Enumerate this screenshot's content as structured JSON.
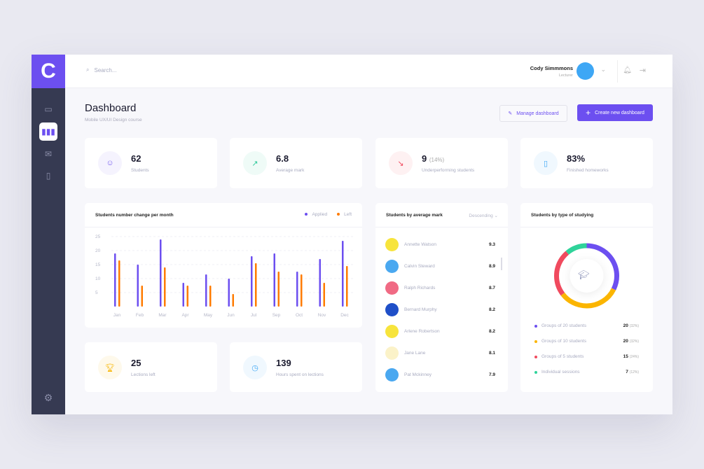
{
  "app": {
    "logo": "C"
  },
  "sidebar": {
    "items": [
      {
        "icon": "folder-icon"
      },
      {
        "icon": "bar-chart-icon",
        "active": true
      },
      {
        "icon": "mail-icon"
      },
      {
        "icon": "document-icon"
      }
    ],
    "settings_icon": "gear-icon"
  },
  "header": {
    "search_placeholder": "Search...",
    "user_name": "Cody Simmmons",
    "user_role": "Lecturer"
  },
  "page": {
    "title": "Dashboard",
    "subtitle": "Mobile UX/UI Design course",
    "manage_label": "Manage dashboard",
    "create_label": "Create new dashboard"
  },
  "stats": [
    {
      "value": "62",
      "extra": "",
      "label": "Students",
      "icon": "user-icon",
      "color": "#7c63f0"
    },
    {
      "value": "6.8",
      "extra": "",
      "label": "Average mark",
      "icon": "trend-up-icon",
      "color": "#2ec99a"
    },
    {
      "value": "9",
      "extra": "(14%)",
      "label": "Underperforming students",
      "icon": "trend-down-icon",
      "color": "#f04a5e"
    },
    {
      "value": "83%",
      "extra": "",
      "label": "Finished homeworks",
      "icon": "book-icon",
      "color": "#3ea7f5"
    }
  ],
  "stats2": [
    {
      "value": "25",
      "label": "Lections left",
      "icon": "trophy-icon",
      "color": "#f7b500"
    },
    {
      "value": "139",
      "label": "Hours spent on lections",
      "icon": "clock-icon",
      "color": "#3ea7f5"
    }
  ],
  "chart_data": {
    "type": "bar",
    "title": "Students number change per month",
    "categories": [
      "Jan",
      "Feb",
      "Mar",
      "Apr",
      "May",
      "Jun",
      "Jul",
      "Sep",
      "Oct",
      "Nov",
      "Dec"
    ],
    "series": [
      {
        "name": "Applied",
        "color": "#6c4ff0",
        "values": [
          19,
          15,
          24,
          8.5,
          11.5,
          10,
          18,
          19,
          12.5,
          17,
          23.5
        ]
      },
      {
        "name": "Left",
        "color": "#ff7b00",
        "values": [
          16.5,
          7.5,
          14,
          7.5,
          7.5,
          4.5,
          15.5,
          12.5,
          11.5,
          8.5,
          14.5
        ]
      }
    ],
    "yticks": [
      "5",
      "10",
      "15",
      "20",
      "25"
    ],
    "ylim": [
      0,
      25
    ],
    "grid": true,
    "legend": "top-right"
  },
  "marks": {
    "title": "Students by average mark",
    "sort": "Descending",
    "students": [
      {
        "name": "Annette Watson",
        "mark": "9.3",
        "bg": "#f7e43c"
      },
      {
        "name": "Calvin Steward",
        "mark": "8.9",
        "bg": "#4aa8f0"
      },
      {
        "name": "Ralph Richards",
        "mark": "8.7",
        "bg": "#f06a84"
      },
      {
        "name": "Bernard Murphy",
        "mark": "8.2",
        "bg": "#1f4fc8"
      },
      {
        "name": "Arlene Robertson",
        "mark": "8.2",
        "bg": "#f7e43c"
      },
      {
        "name": "Jane Lane",
        "mark": "8.1",
        "bg": "#fbf2c8"
      },
      {
        "name": "Pat Mckinney",
        "mark": "7.9",
        "bg": "#4aa8f0"
      }
    ]
  },
  "studying": {
    "title": "Students by type of studying",
    "center_icon": "graduation-cap-icon",
    "groups": [
      {
        "label": "Groups of 20 students",
        "count": "20",
        "pct": "(32%)",
        "value": 20,
        "color": "#6c4ff0"
      },
      {
        "label": "Groups of 10 students",
        "count": "20",
        "pct": "(32%)",
        "value": 20,
        "color": "#fbb500"
      },
      {
        "label": "Groups of 5 students",
        "count": "15",
        "pct": "(24%)",
        "value": 15,
        "color": "#f04a5e"
      },
      {
        "label": "Individual sessions",
        "count": "7",
        "pct": "(12%)",
        "value": 7,
        "color": "#2fd39a"
      }
    ]
  }
}
